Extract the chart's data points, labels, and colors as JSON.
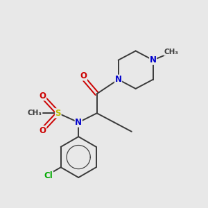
{
  "background_color": "#e8e8e8",
  "bond_color": "#3a3a3a",
  "nitrogen_color": "#0000cc",
  "oxygen_color": "#cc0000",
  "sulfur_color": "#bbbb00",
  "chlorine_color": "#00aa00",
  "font_size": 8.5,
  "lw": 1.4,
  "xlim": [
    0,
    10
  ],
  "ylim": [
    0,
    10
  ]
}
